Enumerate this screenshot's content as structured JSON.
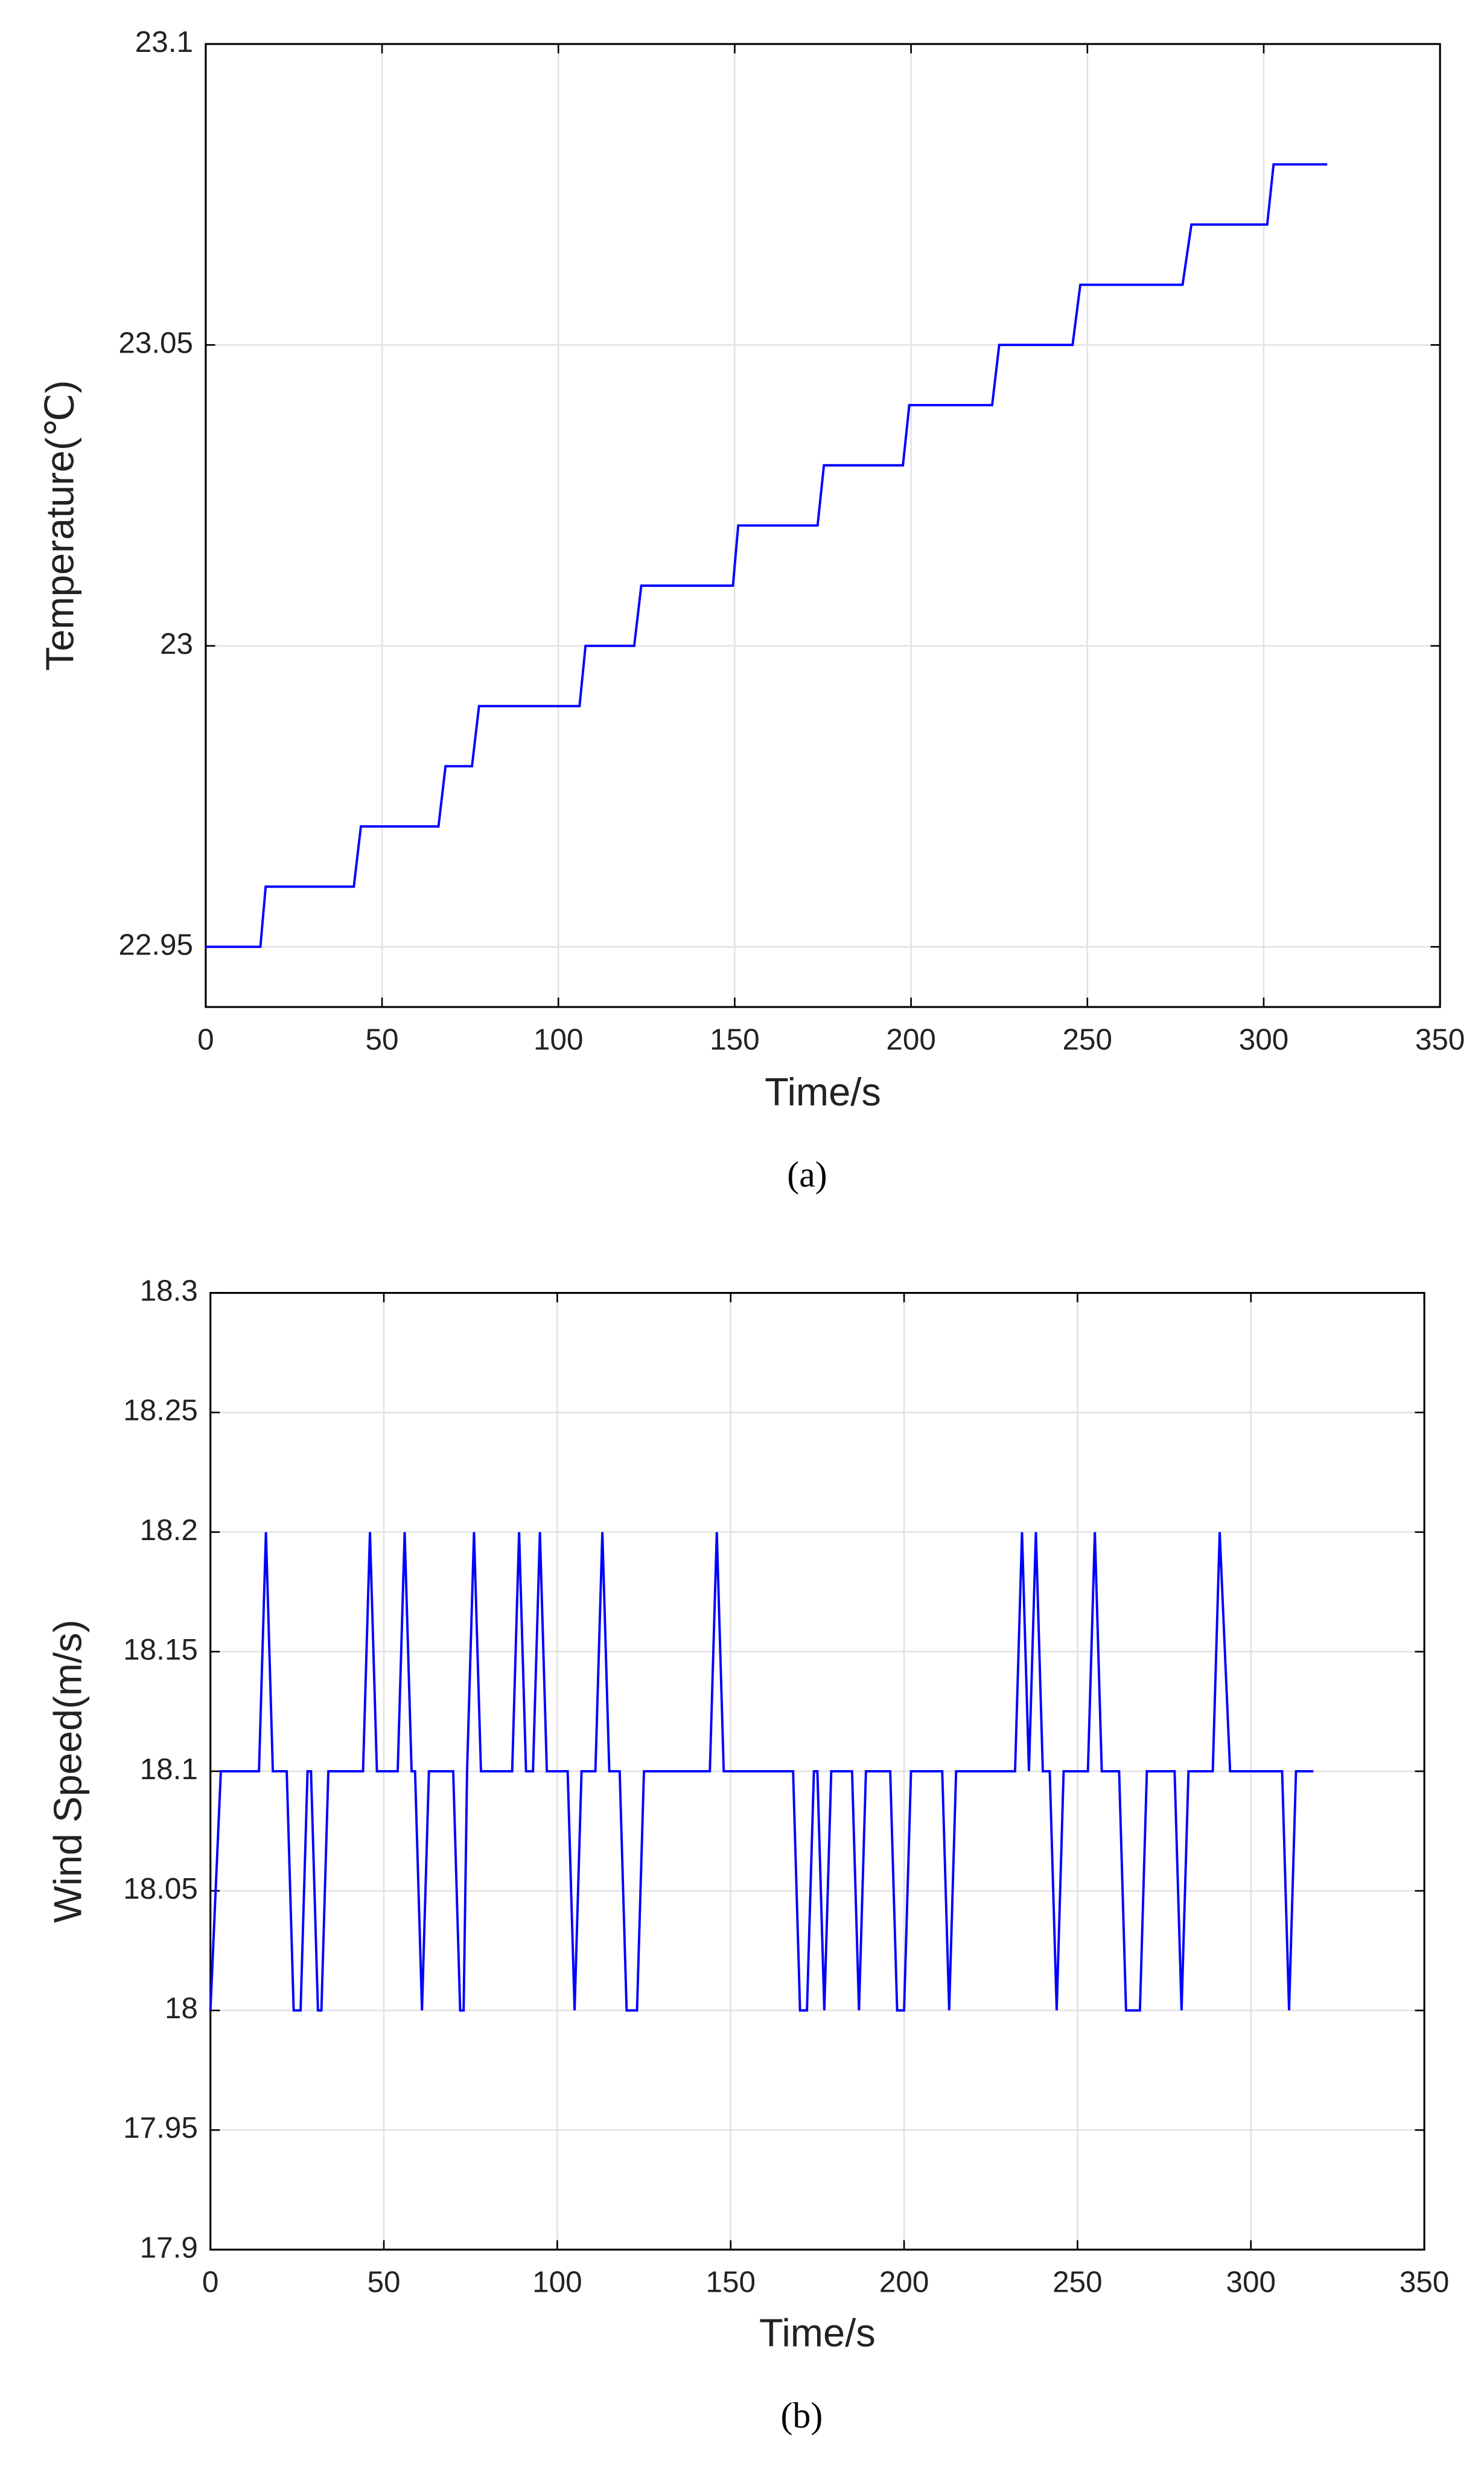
{
  "chart_data": [
    {
      "type": "line",
      "caption": "(a)",
      "x_label": "Time/s",
      "y_label": "Temperature(℃)",
      "xlim": [
        0,
        350
      ],
      "xticks": [
        0,
        50,
        100,
        150,
        200,
        250,
        300,
        350
      ],
      "ylim": [
        22.94,
        23.1
      ],
      "yticks": [
        22.95,
        23,
        23.05,
        23.1
      ],
      "grid": true,
      "x": [
        0,
        15.5,
        17,
        42,
        44,
        66,
        68,
        75.5,
        77.5,
        106,
        107.7,
        121.5,
        123.5,
        149.5,
        151,
        173.5,
        175.3,
        197.7,
        199.5,
        223,
        225,
        245.8,
        248,
        277,
        279.5,
        301,
        302.8,
        318
      ],
      "series": [
        {
          "name": "Temperature",
          "color": "#0000ff",
          "values": [
            22.95,
            22.95,
            22.96,
            22.96,
            22.97,
            22.97,
            22.98,
            22.98,
            22.99,
            22.99,
            23.0,
            23.0,
            23.01,
            23.01,
            23.02,
            23.02,
            23.03,
            23.03,
            23.04,
            23.04,
            23.05,
            23.05,
            23.06,
            23.06,
            23.07,
            23.07,
            23.08,
            23.08
          ]
        }
      ]
    },
    {
      "type": "line",
      "caption": "(b)",
      "x_label": "Time/s",
      "y_label": "Wind Speed(m/s)",
      "xlim": [
        0,
        350
      ],
      "xticks": [
        0,
        50,
        100,
        150,
        200,
        250,
        300,
        350
      ],
      "ylim": [
        17.9,
        18.3
      ],
      "yticks": [
        17.9,
        17.95,
        18,
        18.05,
        18.1,
        18.15,
        18.2,
        18.25,
        18.3
      ],
      "grid": true,
      "x": [
        0,
        3,
        14,
        16,
        18,
        22,
        24,
        26,
        28,
        29,
        31,
        32,
        34,
        44,
        46,
        48,
        54,
        56,
        58,
        59,
        61,
        63,
        70,
        72,
        73,
        74,
        76,
        78,
        87,
        89,
        91,
        93,
        95,
        97,
        103,
        105,
        107,
        111,
        113,
        115,
        118,
        120,
        123,
        125,
        144,
        146,
        148,
        168,
        170,
        172,
        174,
        175,
        177,
        179,
        185,
        187,
        189,
        196,
        198,
        200,
        202,
        211,
        213,
        215,
        232,
        234,
        236,
        238,
        240,
        242,
        244,
        246,
        253,
        255,
        257,
        262,
        264,
        268,
        270,
        278,
        280,
        282,
        289,
        291,
        294,
        309,
        311,
        313,
        318
      ],
      "series": [
        {
          "name": "Wind Speed",
          "color": "#0000ff",
          "values": [
            18.0,
            18.1,
            18.1,
            18.2,
            18.1,
            18.1,
            18.0,
            18.0,
            18.1,
            18.1,
            18.0,
            18.0,
            18.1,
            18.1,
            18.2,
            18.1,
            18.1,
            18.2,
            18.1,
            18.1,
            18.0,
            18.1,
            18.1,
            18.0,
            18.0,
            18.1,
            18.2,
            18.1,
            18.1,
            18.2,
            18.1,
            18.1,
            18.2,
            18.1,
            18.1,
            18.0,
            18.1,
            18.1,
            18.2,
            18.1,
            18.1,
            18.0,
            18.0,
            18.1,
            18.1,
            18.2,
            18.1,
            18.1,
            18.0,
            18.0,
            18.1,
            18.1,
            18.0,
            18.1,
            18.1,
            18.0,
            18.1,
            18.1,
            18.0,
            18.0,
            18.1,
            18.1,
            18.0,
            18.1,
            18.1,
            18.2,
            18.1,
            18.2,
            18.1,
            18.1,
            18.0,
            18.1,
            18.1,
            18.2,
            18.1,
            18.1,
            18.0,
            18.0,
            18.1,
            18.1,
            18.0,
            18.1,
            18.1,
            18.2,
            18.1,
            18.1,
            18.0,
            18.1,
            18.1
          ]
        }
      ]
    }
  ]
}
